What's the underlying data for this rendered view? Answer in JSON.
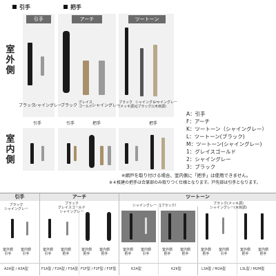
{
  "sections": {
    "pull": "引手",
    "handle": "把手"
  },
  "tags": {
    "pull": "引手",
    "arch": "アーチ",
    "twotone": "ツートーン"
  },
  "side": {
    "outside": "室外側",
    "inside": "室内側"
  },
  "outside_captions": {
    "pull_black": "ブラック",
    "pull_gray": "シャイングレー",
    "arch_black": "ブラック",
    "arch_gold": "グレイス\nゴールド",
    "arch_gray": "シャイングレー",
    "tt_black": "ブラック\n(メッキ調)",
    "tt_jblack": "シャイングレー\n(Jブラック)",
    "tt_wood": "シャイングレー\n(木目調)"
  },
  "inside_labels": {
    "pull": "引手",
    "handle1": "把手",
    "handle2": "把手"
  },
  "legend": [
    "A：引手",
    "F：アーチ",
    "K：ツートーン（シャイングレー）",
    "L：ツートーン(ブラック)",
    "M：ツートーン(シャイングレー)",
    "1：グレイスゴールド",
    "2：シャイングレー",
    "3：ブラック"
  ],
  "notes": [
    "※網戸を取り付ける場合、室内側に「把手」は使用できません。",
    "※４枚建の把手は合掌部のみ取りつく仕様となります。戸先部は引手となります。"
  ],
  "table": {
    "headers": {
      "pull": "引手",
      "arch": "アーチ",
      "twotone": "ツートーン"
    },
    "colors": {
      "pull": "ブラック\nシャイングレー",
      "arch": "ブラック\nグレイスゴールド\nシャイングレー",
      "tt_j": "シャイングレー（Jブラック）",
      "tt_m": "ブラック(メッキ調)\nシャイングレー(木目調)"
    },
    "captions": [
      {
        "out": "室外側\n引手",
        "in": "室内側\n引手"
      },
      {
        "out": "室外側\n引手",
        "in": "室内側\n把手"
      },
      {
        "out": "室外側\n把手",
        "in": "室内側\n把手"
      },
      {
        "out": "室外側\n把手",
        "in": "室内側\n引手"
      },
      {
        "out": "室外側\n把手",
        "in": "室内側\n把手"
      },
      {
        "out": "室外側\n把手",
        "in": "室内側\n引手"
      },
      {
        "out": "室外側\n把手",
        "in": "室内側\n把手"
      }
    ],
    "codes": [
      "A2A型 / A3A型",
      "F1A型 / F2A型 / F3A型",
      "F1F型 / F2F型 / F3F型",
      "K2A型",
      "K2K型",
      "L3A型 / M2A型",
      "L3L型 / M2M型"
    ]
  },
  "colors": {
    "black": "#1a1a1a",
    "gold": "#a8906a",
    "gray": "#9a9a9a",
    "wood": "#b9a98a",
    "tag": "#6b6b6b"
  }
}
